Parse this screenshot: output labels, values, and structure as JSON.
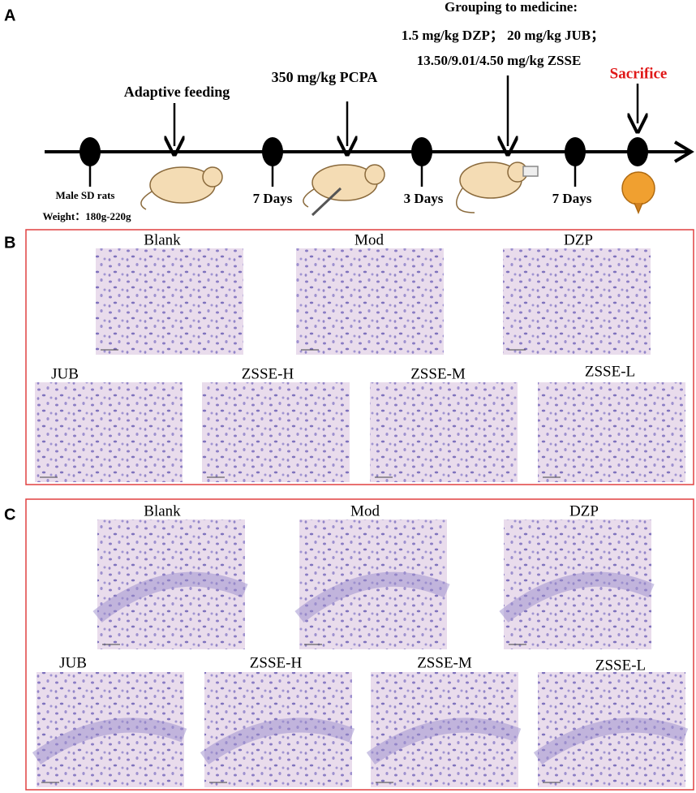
{
  "panel_a": {
    "label": "A",
    "grouping": [
      "Grouping to medicine:",
      "1.5 mg/kg DZP； 20 mg/kg JUB；",
      "13.50/9.01/4.50 mg/kg  ZSSE"
    ],
    "adaptive": "Adaptive feeding",
    "pcpa": "350 mg/kg PCPA",
    "sacrifice": "Sacrifice",
    "rats": "Male SD rats",
    "weight": "Weight：180g-220g",
    "durations": [
      "7 Days",
      "3 Days",
      "7 Days"
    ]
  },
  "panel_b": {
    "label": "B",
    "titles": [
      "Blank",
      "Mod",
      "DZP",
      "JUB",
      "ZSSE-H",
      "ZSSE-M",
      "ZSSE-L"
    ]
  },
  "panel_c": {
    "label": "C",
    "titles": [
      "Blank",
      "Mod",
      "DZP",
      "JUB",
      "ZSSE-H",
      "ZSSE-M",
      "ZSSE-L"
    ]
  }
}
